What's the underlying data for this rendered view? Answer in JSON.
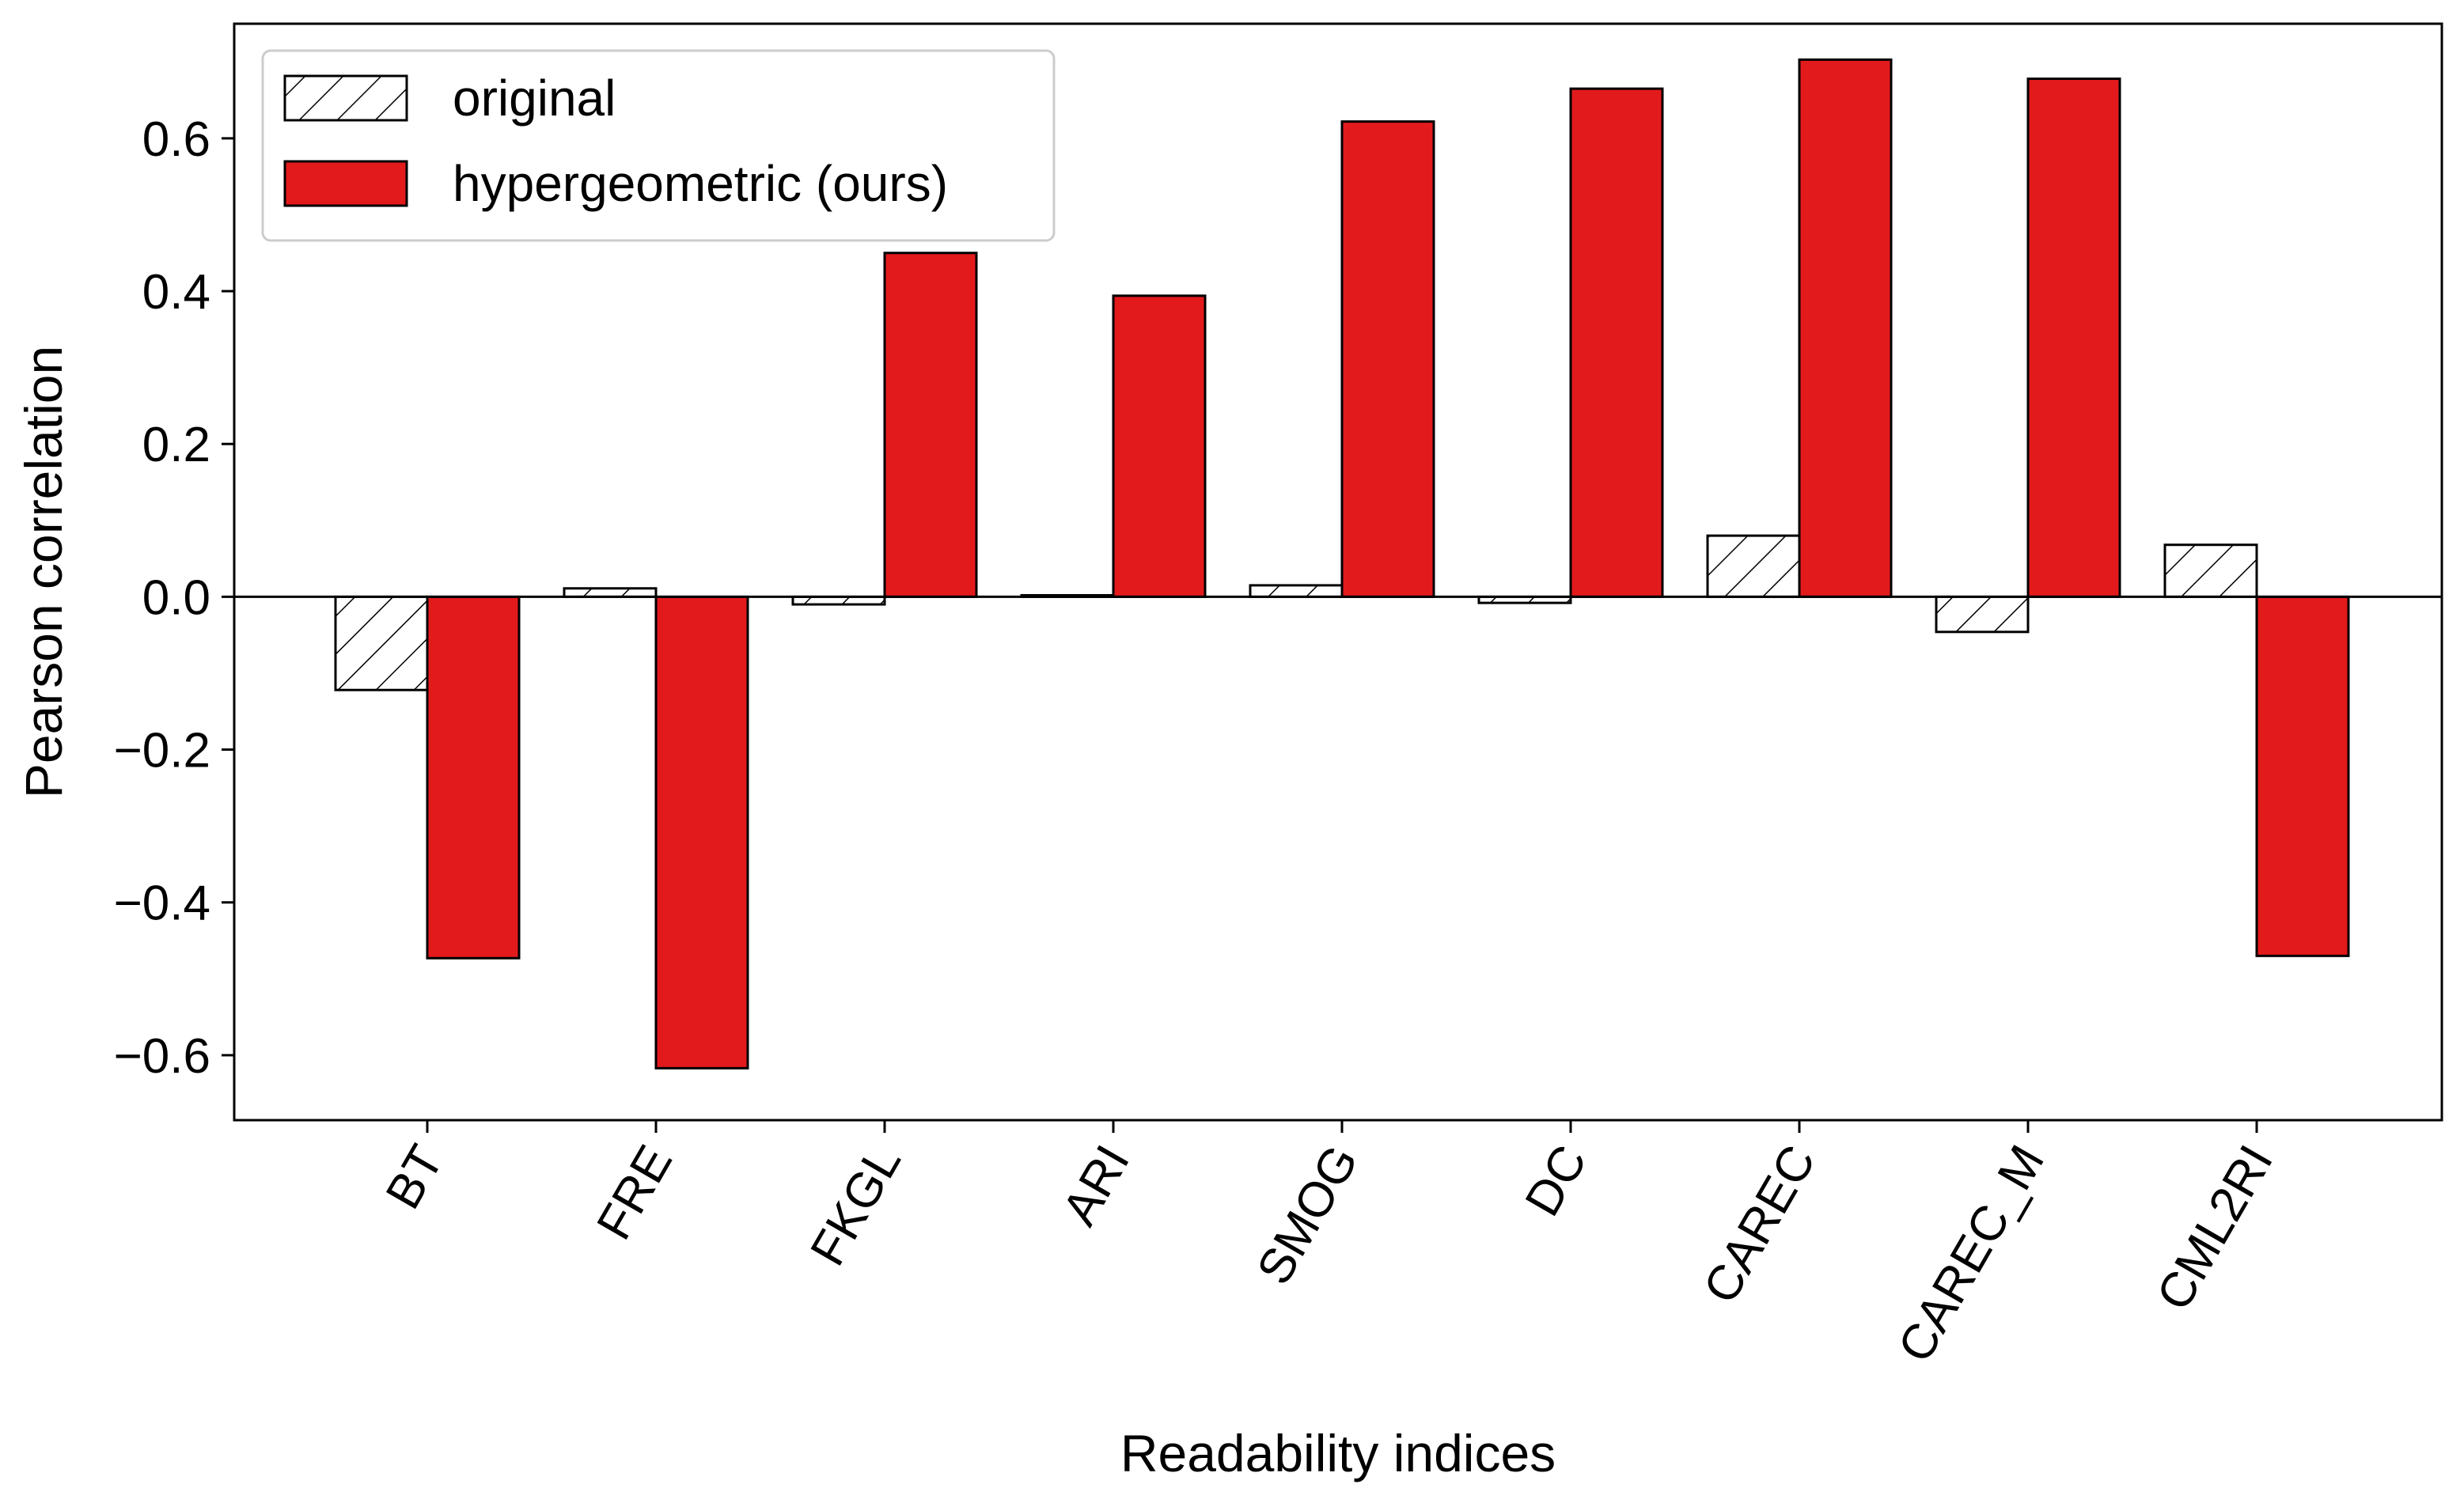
{
  "chart_data": {
    "type": "bar",
    "xlabel": "Readability indices",
    "ylabel": "Pearson correlation",
    "categories": [
      "BT",
      "FRE",
      "FKGL",
      "ARI",
      "SMOG",
      "DC",
      "CAREC",
      "CAREC_M",
      "CML2RI"
    ],
    "series": [
      {
        "name": "original",
        "fill": "#ffffff",
        "pattern": "hatch",
        "values": [
          -0.122,
          0.011,
          -0.01,
          0.002,
          0.015,
          -0.008,
          0.08,
          -0.046,
          0.068
        ]
      },
      {
        "name": "hypergeometric (ours)",
        "fill": "#e31a1c",
        "pattern": "solid",
        "values": [
          -0.473,
          -0.617,
          0.45,
          0.394,
          0.622,
          0.665,
          0.703,
          0.678,
          -0.47
        ]
      }
    ],
    "ylim": [
      -0.685,
      0.75
    ],
    "yticks": [
      -0.6,
      -0.4,
      -0.2,
      0.0,
      0.2,
      0.4,
      0.6
    ],
    "ytick_labels": [
      "−0.6",
      "−0.4",
      "−0.2",
      "0.0",
      "0.2",
      "0.4",
      "0.6"
    ],
    "grid": false,
    "legend_position": "top-left",
    "zero_line": true
  }
}
